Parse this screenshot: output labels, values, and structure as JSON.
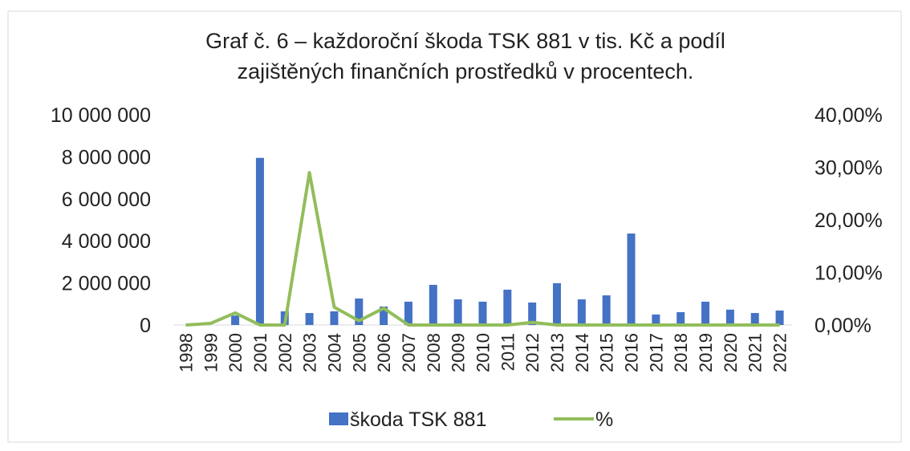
{
  "chart_data": {
    "type": "bar-line",
    "title": [
      "Graf č. 6 – každoroční škoda TSK 881 v tis. Kč a podíl",
      "zajištěných finančních prostředků v procentech."
    ],
    "categories": [
      "1998",
      "1999",
      "2000",
      "2001",
      "2002",
      "2003",
      "2004",
      "2005",
      "2006",
      "2007",
      "2008",
      "2009",
      "2010",
      "2011",
      "2012",
      "2013",
      "2014",
      "2015",
      "2016",
      "2017",
      "2018",
      "2019",
      "2020",
      "2021",
      "2022"
    ],
    "series": [
      {
        "name": "škoda TSK 881",
        "type": "bar",
        "color": "#4472c4",
        "axis": "y",
        "values": [
          0,
          0,
          450000,
          7950000,
          650000,
          570000,
          650000,
          1260000,
          880000,
          1110000,
          1910000,
          1220000,
          1110000,
          1680000,
          1070000,
          1990000,
          1220000,
          1410000,
          4350000,
          500000,
          610000,
          1110000,
          730000,
          570000,
          690000
        ]
      },
      {
        "name": "%",
        "type": "line",
        "color": "#92bd5b",
        "axis": "y2",
        "values": [
          0,
          0.3,
          2.3,
          0,
          0,
          29,
          3.4,
          0.8,
          3.2,
          0,
          0,
          0,
          0,
          0,
          0.5,
          0,
          0,
          0,
          0,
          0,
          0,
          0,
          0,
          0,
          0
        ]
      }
    ],
    "ylim": [
      0,
      10000000
    ],
    "yticks": [
      0,
      {
        "value": 2000000,
        "label": "2 000 000"
      },
      {
        "value": 4000000,
        "label": "4 000 000"
      },
      {
        "value": 6000000,
        "label": "6 000 000"
      },
      {
        "value": 8000000,
        "label": "8 000 000"
      },
      {
        "value": 10000000,
        "label": "10 000 000"
      }
    ],
    "y2lim": [
      0,
      40
    ],
    "y2ticks": [
      {
        "value": 0,
        "label": "0,00%"
      },
      {
        "value": 10,
        "label": "10,00%"
      },
      {
        "value": 20,
        "label": "20,00%"
      },
      {
        "value": 30,
        "label": "30,00%"
      },
      {
        "value": 40,
        "label": "40,00%"
      }
    ],
    "legend": "bottom"
  }
}
